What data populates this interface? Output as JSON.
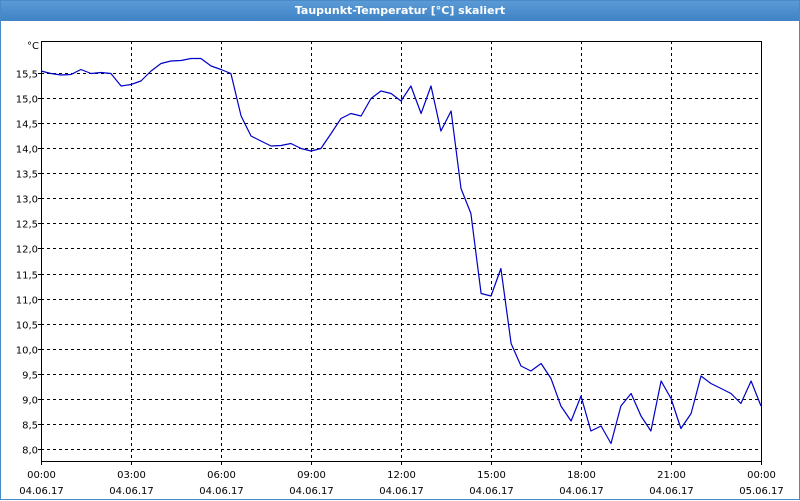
{
  "window": {
    "title": "Taupunkt-Temperatur [°C] skaliert"
  },
  "chart_data": {
    "type": "line",
    "title": "Taupunkt-Temperatur [°C] skaliert",
    "ylabel": "°C",
    "xlabel": "",
    "ylim": [
      7.75,
      16.15
    ],
    "xlim": [
      0,
      24
    ],
    "grid": true,
    "y_ticks": [
      "8,0",
      "8,5",
      "9,0",
      "9,5",
      "10,0",
      "10,5",
      "11,0",
      "11,5",
      "12,0",
      "12,5",
      "13,0",
      "13,5",
      "14,0",
      "14,5",
      "15,0",
      "15,5"
    ],
    "y_tick_values": [
      8.0,
      8.5,
      9.0,
      9.5,
      10.0,
      10.5,
      11.0,
      11.5,
      12.0,
      12.5,
      13.0,
      13.5,
      14.0,
      14.5,
      15.0,
      15.5
    ],
    "x_ticks": [
      {
        "time": "00:00",
        "date": "04.06.17"
      },
      {
        "time": "03:00",
        "date": "04.06.17"
      },
      {
        "time": "06:00",
        "date": "04.06.17"
      },
      {
        "time": "09:00",
        "date": "04.06.17"
      },
      {
        "time": "12:00",
        "date": "04.06.17"
      },
      {
        "time": "15:00",
        "date": "04.06.17"
      },
      {
        "time": "18:00",
        "date": "04.06.17"
      },
      {
        "time": "21:00",
        "date": "04.06.17"
      },
      {
        "time": "00:00",
        "date": "05.06.17"
      }
    ],
    "x_tick_hours": [
      0,
      3,
      6,
      9,
      12,
      15,
      18,
      21,
      24
    ],
    "series": [
      {
        "color": "#0000c8",
        "x": [
          0,
          0.33,
          0.67,
          1.0,
          1.33,
          1.67,
          2.0,
          2.33,
          2.67,
          3.0,
          3.33,
          3.67,
          4.0,
          4.33,
          4.67,
          5.0,
          5.33,
          5.67,
          6.0,
          6.33,
          6.67,
          7.0,
          7.33,
          7.67,
          8.0,
          8.33,
          8.67,
          9.0,
          9.33,
          9.67,
          10.0,
          10.33,
          10.67,
          11.0,
          11.33,
          11.67,
          12.0,
          12.33,
          12.67,
          13.0,
          13.33,
          13.67,
          14.0,
          14.33,
          14.67,
          15.0,
          15.33,
          15.67,
          16.0,
          16.33,
          16.67,
          17.0,
          17.33,
          17.67,
          18.0,
          18.33,
          18.67,
          19.0,
          19.33,
          19.67,
          20.0,
          20.33,
          20.67,
          21.0,
          21.33,
          21.67,
          22.0,
          22.33,
          22.67,
          23.0,
          23.33,
          23.67,
          24.0
        ],
        "values": [
          15.55,
          15.5,
          15.47,
          15.48,
          15.58,
          15.5,
          15.52,
          15.5,
          15.25,
          15.28,
          15.35,
          15.55,
          15.7,
          15.75,
          15.76,
          15.8,
          15.8,
          15.65,
          15.58,
          15.5,
          14.65,
          14.25,
          14.15,
          14.05,
          14.06,
          14.1,
          14.0,
          13.95,
          14.0,
          14.3,
          14.6,
          14.7,
          14.65,
          15.0,
          15.15,
          15.1,
          14.95,
          15.25,
          14.7,
          15.25,
          14.35,
          14.75,
          13.2,
          12.7,
          11.1,
          11.05,
          11.6,
          10.1,
          9.65,
          9.55,
          9.7,
          9.4,
          8.85,
          8.55,
          9.05,
          8.35,
          8.45,
          8.1,
          8.85,
          9.1,
          8.65,
          8.35,
          9.35,
          9.0,
          8.4,
          8.7,
          9.45,
          9.3,
          9.2,
          9.1,
          8.9,
          9.35,
          8.85
        ]
      }
    ]
  }
}
